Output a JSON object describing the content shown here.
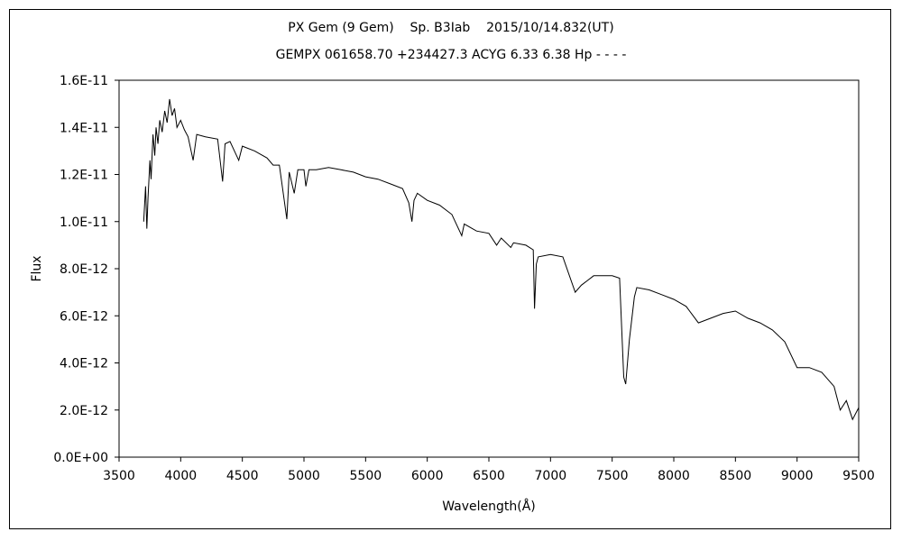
{
  "chart_data": {
    "type": "line",
    "title": "PX Gem (9 Gem)    Sp. B3Iab    2015/10/14.832(UT)",
    "subtitle": "GEMPX 061658.70 +234427.3 ACYG 6.33 6.38 Hp - - - -",
    "xlabel": "Wavelength(Å)",
    "ylabel": "Flux",
    "xlim": [
      3500,
      9500
    ],
    "ylim": [
      0,
      1.6e-11
    ],
    "x_ticks": [
      3500,
      4000,
      4500,
      5000,
      5500,
      6000,
      6500,
      7000,
      7500,
      8000,
      8500,
      9000,
      9500
    ],
    "x_tick_labels": [
      "3500",
      "4000",
      "4500",
      "5000",
      "5500",
      "6000",
      "6500",
      "7000",
      "7500",
      "8000",
      "8500",
      "9000",
      "9500"
    ],
    "y_ticks": [
      0,
      2e-12,
      4e-12,
      6e-12,
      8e-12,
      1e-11,
      1.2e-11,
      1.4e-11,
      1.6e-11
    ],
    "y_tick_labels": [
      "0.0E+00",
      "2.0E-12",
      "4.0E-12",
      "6.0E-12",
      "8.0E-12",
      "1.0E-11",
      "1.2E-11",
      "1.4E-11",
      "1.6E-11"
    ],
    "grid": false,
    "legend": "none",
    "series": [
      {
        "color": "#000000",
        "points": [
          [
            3700,
            1e-11
          ],
          [
            3715,
            1.15e-11
          ],
          [
            3725,
            9.7e-12
          ],
          [
            3735,
            1.1e-11
          ],
          [
            3750,
            1.26e-11
          ],
          [
            3760,
            1.18e-11
          ],
          [
            3775,
            1.37e-11
          ],
          [
            3790,
            1.28e-11
          ],
          [
            3800,
            1.4e-11
          ],
          [
            3815,
            1.33e-11
          ],
          [
            3830,
            1.43e-11
          ],
          [
            3850,
            1.38e-11
          ],
          [
            3870,
            1.47e-11
          ],
          [
            3890,
            1.42e-11
          ],
          [
            3910,
            1.52e-11
          ],
          [
            3930,
            1.45e-11
          ],
          [
            3950,
            1.48e-11
          ],
          [
            3970,
            1.4e-11
          ],
          [
            4000,
            1.43e-11
          ],
          [
            4030,
            1.39e-11
          ],
          [
            4060,
            1.36e-11
          ],
          [
            4101,
            1.26e-11
          ],
          [
            4130,
            1.37e-11
          ],
          [
            4200,
            1.36e-11
          ],
          [
            4300,
            1.35e-11
          ],
          [
            4340,
            1.17e-11
          ],
          [
            4360,
            1.33e-11
          ],
          [
            4400,
            1.34e-11
          ],
          [
            4471,
            1.26e-11
          ],
          [
            4500,
            1.32e-11
          ],
          [
            4600,
            1.3e-11
          ],
          [
            4700,
            1.27e-11
          ],
          [
            4750,
            1.24e-11
          ],
          [
            4800,
            1.24e-11
          ],
          [
            4861,
            1.01e-11
          ],
          [
            4880,
            1.21e-11
          ],
          [
            4921,
            1.12e-11
          ],
          [
            4950,
            1.22e-11
          ],
          [
            5000,
            1.22e-11
          ],
          [
            5015,
            1.15e-11
          ],
          [
            5040,
            1.22e-11
          ],
          [
            5100,
            1.22e-11
          ],
          [
            5200,
            1.23e-11
          ],
          [
            5300,
            1.22e-11
          ],
          [
            5400,
            1.21e-11
          ],
          [
            5500,
            1.19e-11
          ],
          [
            5600,
            1.18e-11
          ],
          [
            5700,
            1.16e-11
          ],
          [
            5800,
            1.14e-11
          ],
          [
            5850,
            1.08e-11
          ],
          [
            5876,
            1e-11
          ],
          [
            5893,
            1.09e-11
          ],
          [
            5920,
            1.12e-11
          ],
          [
            6000,
            1.09e-11
          ],
          [
            6100,
            1.07e-11
          ],
          [
            6200,
            1.03e-11
          ],
          [
            6280,
            9.4e-12
          ],
          [
            6300,
            9.9e-12
          ],
          [
            6400,
            9.6e-12
          ],
          [
            6500,
            9.5e-12
          ],
          [
            6563,
            9e-12
          ],
          [
            6600,
            9.3e-12
          ],
          [
            6678,
            8.9e-12
          ],
          [
            6700,
            9.1e-12
          ],
          [
            6800,
            9e-12
          ],
          [
            6860,
            8.8e-12
          ],
          [
            6870,
            6.3e-12
          ],
          [
            6885,
            8.2e-12
          ],
          [
            6900,
            8.5e-12
          ],
          [
            7000,
            8.6e-12
          ],
          [
            7100,
            8.5e-12
          ],
          [
            7200,
            7e-12
          ],
          [
            7250,
            7.3e-12
          ],
          [
            7300,
            7.5e-12
          ],
          [
            7350,
            7.7e-12
          ],
          [
            7500,
            7.7e-12
          ],
          [
            7560,
            7.6e-12
          ],
          [
            7594,
            3.4e-12
          ],
          [
            7610,
            3.1e-12
          ],
          [
            7640,
            5e-12
          ],
          [
            7680,
            6.8e-12
          ],
          [
            7700,
            7.2e-12
          ],
          [
            7800,
            7.1e-12
          ],
          [
            7900,
            6.9e-12
          ],
          [
            8000,
            6.7e-12
          ],
          [
            8100,
            6.4e-12
          ],
          [
            8200,
            5.7e-12
          ],
          [
            8300,
            5.9e-12
          ],
          [
            8400,
            6.1e-12
          ],
          [
            8500,
            6.2e-12
          ],
          [
            8600,
            5.9e-12
          ],
          [
            8700,
            5.7e-12
          ],
          [
            8800,
            5.4e-12
          ],
          [
            8900,
            4.9e-12
          ],
          [
            9000,
            3.8e-12
          ],
          [
            9100,
            3.8e-12
          ],
          [
            9200,
            3.6e-12
          ],
          [
            9300,
            3e-12
          ],
          [
            9350,
            2e-12
          ],
          [
            9400,
            2.4e-12
          ],
          [
            9450,
            1.6e-12
          ],
          [
            9500,
            2.1e-12
          ]
        ]
      }
    ]
  }
}
